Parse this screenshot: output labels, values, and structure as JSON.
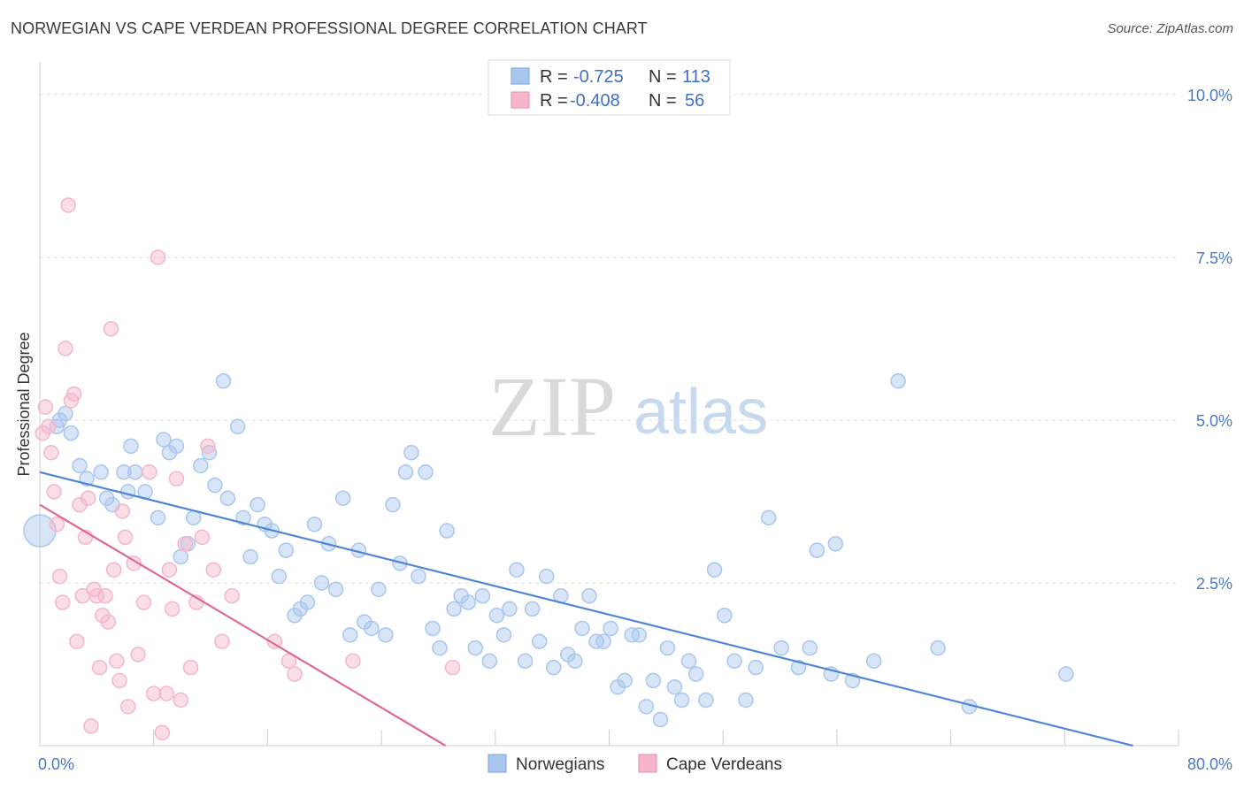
{
  "header": {
    "title": "NORWEGIAN VS CAPE VERDEAN PROFESSIONAL DEGREE CORRELATION CHART",
    "source": "Source: ZipAtlas.com"
  },
  "watermark": {
    "zip": "ZIP",
    "atlas": "atlas"
  },
  "legend_top": {
    "rows": [
      {
        "r_label": "R =",
        "r_value": "-0.725",
        "n_label": "N =",
        "n_value": "113",
        "color": "#a9c6ee"
      },
      {
        "r_label": "R =",
        "r_value": "-0.408",
        "n_label": "N =",
        "n_value": "56",
        "color": "#f4b6c8"
      }
    ]
  },
  "legend_bottom": {
    "items": [
      {
        "label": "Norwegians",
        "color": "#a9c6ee"
      },
      {
        "label": "Cape Verdeans",
        "color": "#f4b6c8"
      }
    ]
  },
  "chart_data": {
    "type": "scatter",
    "title": "NORWEGIAN VS CAPE VERDEAN PROFESSIONAL DEGREE CORRELATION CHART",
    "ylabel": "Professional Degree",
    "xlabel": "",
    "xlim": [
      0,
      80
    ],
    "ylim": [
      0,
      10.5
    ],
    "x_tick_labels": [
      "0.0%",
      "80.0%"
    ],
    "y_ticks": [
      2.5,
      5.0,
      7.5,
      10.0
    ],
    "y_tick_labels": [
      "2.5%",
      "5.0%",
      "7.5%",
      "10.0%"
    ],
    "grid": true,
    "legend_placement": "top-center",
    "series": [
      {
        "name": "Norwegians",
        "color": "#4f86d6",
        "fill": "#a9c6ee",
        "trend": {
          "x": [
            0,
            76.8
          ],
          "y": [
            4.2,
            0.0
          ]
        },
        "points": [
          [
            0.0,
            3.3
          ],
          [
            1.2,
            4.9
          ],
          [
            1.4,
            5.0
          ],
          [
            1.8,
            5.1
          ],
          [
            2.2,
            4.8
          ],
          [
            2.8,
            4.3
          ],
          [
            3.3,
            4.1
          ],
          [
            4.3,
            4.2
          ],
          [
            4.7,
            3.8
          ],
          [
            5.1,
            3.7
          ],
          [
            5.9,
            4.2
          ],
          [
            6.2,
            3.9
          ],
          [
            6.4,
            4.6
          ],
          [
            6.7,
            4.2
          ],
          [
            7.4,
            3.9
          ],
          [
            8.3,
            3.5
          ],
          [
            8.7,
            4.7
          ],
          [
            9.1,
            4.5
          ],
          [
            9.6,
            4.6
          ],
          [
            9.9,
            2.9
          ],
          [
            10.4,
            3.1
          ],
          [
            10.8,
            3.5
          ],
          [
            11.3,
            4.3
          ],
          [
            11.9,
            4.5
          ],
          [
            12.3,
            4.0
          ],
          [
            12.9,
            5.6
          ],
          [
            13.2,
            3.8
          ],
          [
            13.9,
            4.9
          ],
          [
            14.3,
            3.5
          ],
          [
            14.8,
            2.9
          ],
          [
            15.3,
            3.7
          ],
          [
            15.8,
            3.4
          ],
          [
            16.3,
            3.3
          ],
          [
            16.8,
            2.6
          ],
          [
            17.3,
            3.0
          ],
          [
            17.9,
            2.0
          ],
          [
            18.3,
            2.1
          ],
          [
            18.8,
            2.2
          ],
          [
            19.3,
            3.4
          ],
          [
            19.8,
            2.5
          ],
          [
            20.3,
            3.1
          ],
          [
            20.8,
            2.4
          ],
          [
            21.3,
            3.8
          ],
          [
            21.8,
            1.7
          ],
          [
            22.4,
            3.0
          ],
          [
            22.8,
            1.9
          ],
          [
            23.3,
            1.8
          ],
          [
            23.8,
            2.4
          ],
          [
            24.3,
            1.7
          ],
          [
            24.8,
            3.7
          ],
          [
            25.3,
            2.8
          ],
          [
            25.7,
            4.2
          ],
          [
            26.1,
            4.5
          ],
          [
            26.6,
            2.6
          ],
          [
            27.1,
            4.2
          ],
          [
            27.6,
            1.8
          ],
          [
            28.1,
            1.5
          ],
          [
            28.6,
            3.3
          ],
          [
            29.1,
            2.1
          ],
          [
            29.6,
            2.3
          ],
          [
            30.1,
            2.2
          ],
          [
            30.6,
            1.5
          ],
          [
            31.1,
            2.3
          ],
          [
            31.6,
            1.3
          ],
          [
            32.1,
            2.0
          ],
          [
            32.6,
            1.7
          ],
          [
            33.0,
            2.1
          ],
          [
            33.5,
            2.7
          ],
          [
            34.1,
            1.3
          ],
          [
            34.6,
            2.1
          ],
          [
            35.1,
            1.6
          ],
          [
            35.6,
            2.6
          ],
          [
            36.1,
            1.2
          ],
          [
            36.6,
            2.3
          ],
          [
            37.1,
            1.4
          ],
          [
            37.6,
            1.3
          ],
          [
            38.1,
            1.8
          ],
          [
            38.6,
            2.3
          ],
          [
            39.1,
            1.6
          ],
          [
            39.6,
            1.6
          ],
          [
            40.1,
            1.8
          ],
          [
            40.6,
            0.9
          ],
          [
            41.1,
            1.0
          ],
          [
            41.6,
            1.7
          ],
          [
            42.1,
            1.7
          ],
          [
            42.6,
            0.6
          ],
          [
            43.1,
            1.0
          ],
          [
            43.6,
            0.4
          ],
          [
            44.1,
            1.5
          ],
          [
            44.6,
            0.9
          ],
          [
            45.1,
            0.7
          ],
          [
            45.6,
            1.3
          ],
          [
            46.1,
            1.1
          ],
          [
            46.8,
            0.7
          ],
          [
            47.4,
            2.7
          ],
          [
            48.1,
            2.0
          ],
          [
            48.8,
            1.3
          ],
          [
            49.6,
            0.7
          ],
          [
            50.3,
            1.2
          ],
          [
            51.2,
            3.5
          ],
          [
            52.1,
            1.5
          ],
          [
            53.3,
            1.2
          ],
          [
            54.1,
            1.5
          ],
          [
            54.6,
            3.0
          ],
          [
            55.6,
            1.1
          ],
          [
            55.9,
            3.1
          ],
          [
            57.1,
            1.0
          ],
          [
            58.6,
            1.3
          ],
          [
            60.3,
            5.6
          ],
          [
            63.1,
            1.5
          ],
          [
            65.3,
            0.6
          ],
          [
            72.1,
            1.1
          ]
        ]
      },
      {
        "name": "Cape Verdeans",
        "color": "#e0698f",
        "fill": "#f4b6c8",
        "trend": {
          "x": [
            0,
            28.5
          ],
          "y": [
            3.7,
            0.0
          ]
        },
        "points": [
          [
            0.2,
            4.8
          ],
          [
            0.4,
            5.2
          ],
          [
            0.6,
            4.9
          ],
          [
            0.8,
            4.5
          ],
          [
            1.0,
            3.9
          ],
          [
            1.2,
            3.4
          ],
          [
            1.4,
            2.6
          ],
          [
            1.6,
            2.2
          ],
          [
            1.8,
            6.1
          ],
          [
            2.0,
            8.3
          ],
          [
            2.2,
            5.3
          ],
          [
            2.4,
            5.4
          ],
          [
            2.6,
            1.6
          ],
          [
            2.8,
            3.7
          ],
          [
            3.0,
            2.3
          ],
          [
            3.2,
            3.2
          ],
          [
            3.4,
            3.8
          ],
          [
            3.6,
            0.3
          ],
          [
            3.8,
            2.4
          ],
          [
            4.0,
            2.3
          ],
          [
            4.2,
            1.2
          ],
          [
            4.4,
            2.0
          ],
          [
            4.6,
            2.3
          ],
          [
            4.8,
            1.9
          ],
          [
            5.0,
            6.4
          ],
          [
            5.2,
            2.7
          ],
          [
            5.4,
            1.3
          ],
          [
            5.6,
            1.0
          ],
          [
            5.8,
            3.6
          ],
          [
            6.0,
            3.2
          ],
          [
            6.2,
            0.6
          ],
          [
            6.6,
            2.8
          ],
          [
            6.9,
            1.4
          ],
          [
            7.3,
            2.2
          ],
          [
            7.7,
            4.2
          ],
          [
            8.0,
            0.8
          ],
          [
            8.3,
            7.5
          ],
          [
            8.6,
            0.2
          ],
          [
            8.9,
            0.8
          ],
          [
            9.1,
            2.7
          ],
          [
            9.3,
            2.1
          ],
          [
            9.6,
            4.1
          ],
          [
            9.9,
            0.7
          ],
          [
            10.2,
            3.1
          ],
          [
            10.6,
            1.2
          ],
          [
            11.0,
            2.2
          ],
          [
            11.4,
            3.2
          ],
          [
            11.8,
            4.6
          ],
          [
            12.2,
            2.7
          ],
          [
            12.8,
            1.6
          ],
          [
            13.5,
            2.3
          ],
          [
            16.5,
            1.6
          ],
          [
            17.5,
            1.3
          ],
          [
            17.9,
            1.1
          ],
          [
            22.0,
            1.3
          ],
          [
            29.0,
            1.2
          ]
        ]
      }
    ]
  }
}
